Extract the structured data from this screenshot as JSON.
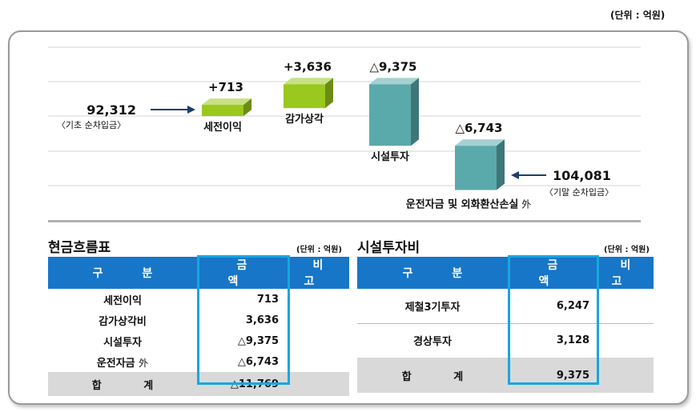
{
  "unit_label": "(단위 : 억원)",
  "chart_data": {
    "type": "bar",
    "subtype": "waterfall",
    "start": {
      "label": "〈기초 순차입금〉",
      "value": 92312,
      "display": "92,312"
    },
    "end": {
      "label": "〈기말 순차입금〉",
      "value": 104081,
      "display": "104,081"
    },
    "steps": [
      {
        "label": "세전이익",
        "value": 713,
        "display": "+713",
        "color": "#9ac81e"
      },
      {
        "label": "감가상각",
        "value": 3636,
        "display": "+3,636",
        "color": "#9ac81e"
      },
      {
        "label": "시설투자",
        "value": -9375,
        "display": "△9,375",
        "color": "#5aa9ab"
      },
      {
        "label": "운전자금 및 외화환산손실",
        "suffix": "外",
        "value": -6743,
        "display": "△6,743",
        "color": "#5aa9ab"
      }
    ]
  },
  "cashflow": {
    "title": "현금흐름표",
    "unit": "(단위 : 억원)",
    "headers": [
      "구 분",
      "금 액",
      "비 고"
    ],
    "rows": [
      {
        "name": "세전이익",
        "suffix": "",
        "amount": "713"
      },
      {
        "name": "감가상각비",
        "suffix": "",
        "amount": "3,636"
      },
      {
        "name": "시설투자",
        "suffix": "",
        "amount": "△9,375"
      },
      {
        "name": "운전자금",
        "suffix": "外",
        "amount": "△6,743"
      }
    ],
    "total": {
      "name": "합 계",
      "amount": "△11,769"
    }
  },
  "capex": {
    "title": "시설투자비",
    "unit": "(단위 : 억원)",
    "headers": [
      "구 분",
      "금 액",
      "비 고"
    ],
    "rows": [
      {
        "name": "제철3기투자",
        "amount": "6,247"
      },
      {
        "name": "경상투자",
        "amount": "3,128"
      }
    ],
    "total": {
      "name": "합 계",
      "amount": "9,375"
    }
  },
  "colors": {
    "header_blue": "#1776c8",
    "highlight": "#19a6e0",
    "total_gray": "#d9d9d9"
  }
}
